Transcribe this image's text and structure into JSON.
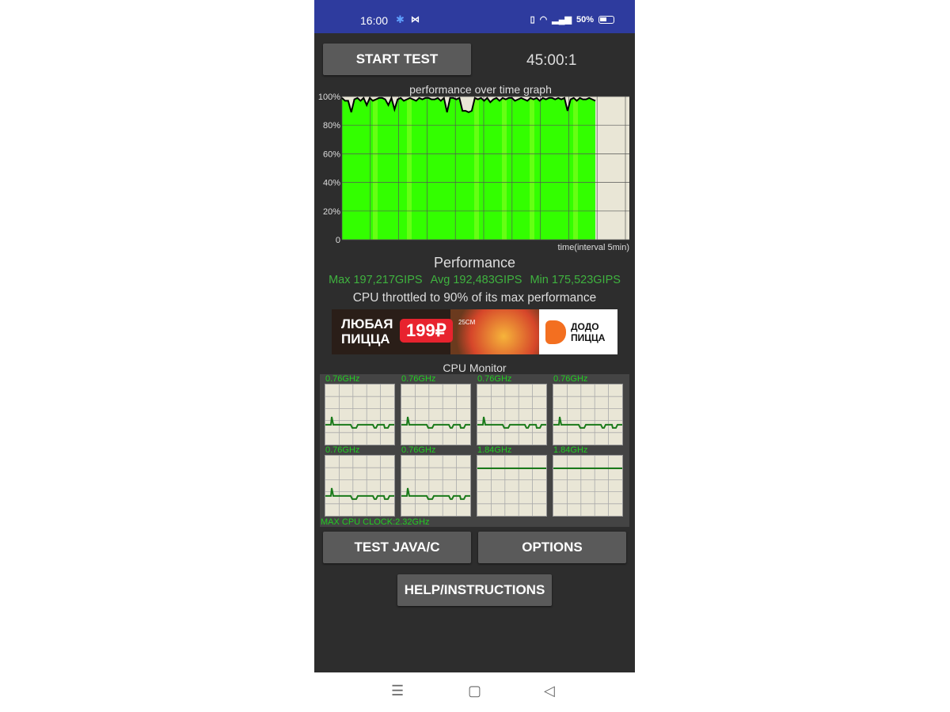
{
  "status_bar": {
    "time": "16:00",
    "battery": "50%",
    "icons": [
      "gear-icon",
      "m-icon",
      "vibrate-icon",
      "wifi-icon",
      "signal-icon",
      "battery-icon"
    ]
  },
  "controls": {
    "start_label": "START TEST",
    "timer": "45:00:1",
    "java_label": "TEST JAVA/C",
    "options_label": "OPTIONS",
    "help_label": "HELP/INSTRUCTIONS"
  },
  "graph": {
    "title": "performance over time graph",
    "x_label": "time(interval 5min)"
  },
  "chart_data": {
    "type": "area",
    "title": "performance over time graph",
    "xlabel": "time(interval 5min)",
    "ylabel": "",
    "ylim": [
      0,
      100
    ],
    "ytick_labels": [
      "0",
      "20%",
      "40%",
      "60%",
      "80%",
      "100%"
    ],
    "grid": true,
    "fill_color": "#33ff00",
    "values": [
      99,
      97,
      97,
      89,
      98,
      99,
      97,
      99,
      94,
      99,
      97,
      98,
      99,
      99,
      98,
      94,
      99,
      91,
      98,
      99,
      97,
      98,
      99,
      98,
      97,
      99,
      98,
      99,
      99,
      98,
      98,
      99,
      97,
      99,
      89,
      99,
      99,
      98,
      99,
      90,
      90,
      89,
      90,
      99,
      98,
      99,
      97,
      99,
      96,
      98,
      99,
      97,
      99,
      98,
      99,
      99,
      97,
      98,
      99,
      98,
      97,
      99,
      98,
      99,
      97,
      99,
      98,
      99,
      99,
      98,
      99,
      98,
      99,
      90,
      98,
      99,
      97,
      99,
      98,
      98,
      99,
      98,
      97
    ]
  },
  "performance": {
    "heading": "Performance",
    "max": "Max 197,217GIPS",
    "avg": "Avg 192,483GIPS",
    "min": "Min 175,523GIPS",
    "throttle": "CPU throttled to 90% of its max performance"
  },
  "ad": {
    "line1": "ЛЮБАЯ",
    "line2": "ПИЦЦА",
    "price": "199₽",
    "size": "25CM",
    "brand1": "ДОДО",
    "brand2": "ПИЦЦА"
  },
  "cpu_monitor": {
    "title": "CPU Monitor",
    "max_clock": "MAX CPU CLOCK:2.32GHz",
    "cores": [
      {
        "label": "0.76GHz",
        "level": 0.33
      },
      {
        "label": "0.76GHz",
        "level": 0.33
      },
      {
        "label": "0.76GHz",
        "level": 0.33
      },
      {
        "label": "0.76GHz",
        "level": 0.33
      },
      {
        "label": "0.76GHz",
        "level": 0.33
      },
      {
        "label": "0.76GHz",
        "level": 0.33
      },
      {
        "label": "1.84GHz",
        "level": 0.79
      },
      {
        "label": "1.84GHz",
        "level": 0.79
      }
    ]
  }
}
